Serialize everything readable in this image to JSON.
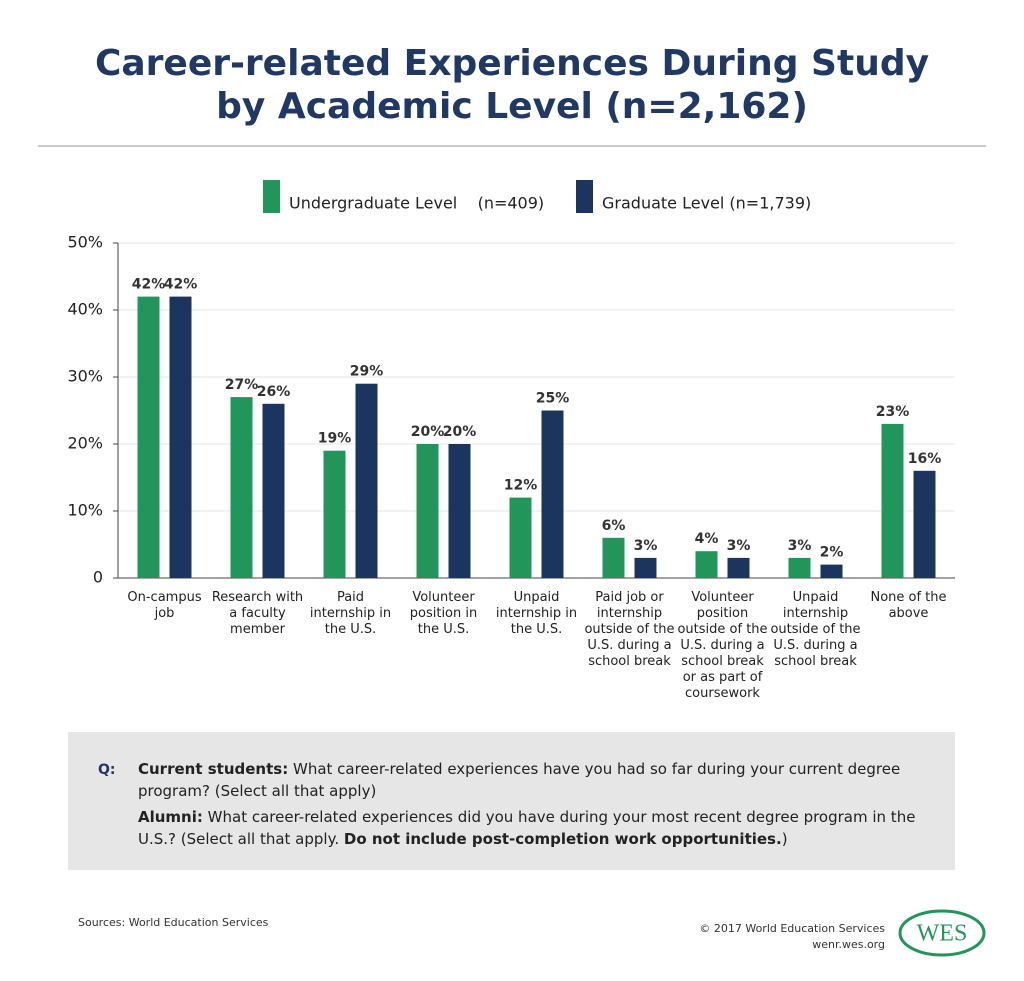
{
  "chart_data": {
    "type": "bar",
    "title": "Career-related Experiences During Study",
    "subtitle": "by Academic Level (n=2,162)",
    "categories": [
      "On-campus job",
      "Research with a faculty member",
      "Paid internship in the U.S.",
      "Volunteer position in the U.S.",
      "Unpaid internship in the U.S.",
      "Paid job or internship outside of the U.S. during a school break",
      "Volunteer position outside of the U.S. during a school break or as part of coursework",
      "Unpaid internship outside of the U.S. during a school break",
      "None of the above"
    ],
    "series": [
      {
        "name": "Undergraduate Level    (n=409)",
        "color": "#22965a",
        "values": [
          42,
          27,
          19,
          20,
          12,
          6,
          4,
          3,
          23
        ],
        "value_labels": [
          "42%",
          "27%",
          "19%",
          "20%",
          "12%",
          "6%",
          "4%",
          "3%",
          "23%"
        ]
      },
      {
        "name": "Graduate Level (n=1,739)",
        "color": "#1c355e",
        "values": [
          42,
          26,
          29,
          20,
          25,
          3,
          3,
          2,
          16
        ],
        "value_labels": [
          "42%",
          "26%",
          "29%",
          "20%",
          "25%",
          "3%",
          "3%",
          "2%",
          "16%"
        ]
      }
    ],
    "ylim": [
      0,
      50
    ],
    "yticks": [
      0,
      {
        "value": 10,
        "label": "10%"
      },
      {
        "value": 20,
        "label": "20%"
      },
      {
        "value": 30,
        "label": "30%"
      },
      {
        "value": 40,
        "label": "40%"
      },
      {
        "value": 50,
        "label": "50%"
      }
    ],
    "grid": true
  },
  "question": {
    "marker": "Q:",
    "current_label": "Current students:",
    "current_text": "What career-related experiences have you had so far during your current degree program? (Select all that apply)",
    "alumni_label": "Alumni:",
    "alumni_text": "What career-related experiences did you have during your most recent degree program in the U.S.? (Select all that apply.",
    "alumni_bold": "Do not include post-completion work opportunities.",
    "alumni_end": ")"
  },
  "footer": {
    "sources": "Sources: World Education Services",
    "copyright": "© 2017 World Education Services",
    "website": "wenr.wes.org",
    "logo": "WES"
  }
}
